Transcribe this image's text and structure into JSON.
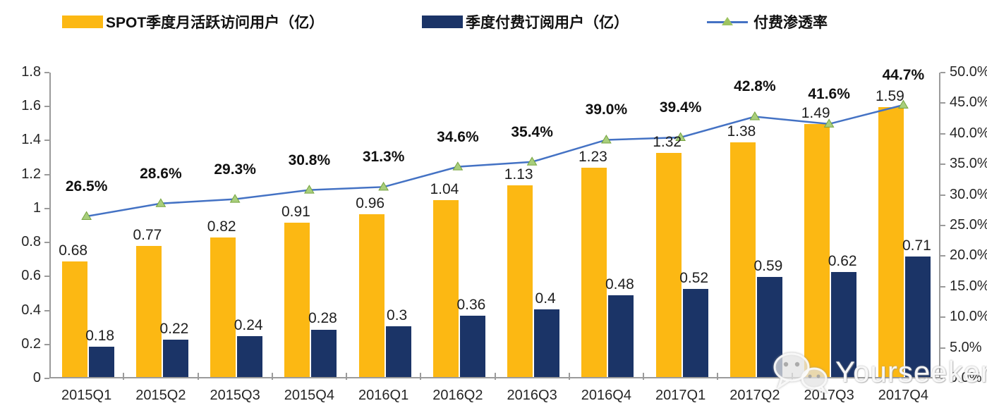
{
  "legend": [
    {
      "label": "SPOT季度月活跃访问用户（亿）",
      "type": "bar",
      "color": "#FCB813"
    },
    {
      "label": "季度付费订阅用户（亿）",
      "type": "bar",
      "color": "#1B3467"
    },
    {
      "label": "付费渗透率",
      "type": "line",
      "color": "#4472C4",
      "marker_color": "#9DC360"
    }
  ],
  "chart_data": {
    "type": "bar+line",
    "categories": [
      "2015Q1",
      "2015Q2",
      "2015Q3",
      "2015Q4",
      "2016Q1",
      "2016Q2",
      "2016Q3",
      "2016Q4",
      "2017Q1",
      "2017Q2",
      "2017Q3",
      "2017Q4"
    ],
    "series": [
      {
        "name": "SPOT季度月活跃访问用户（亿）",
        "type": "bar",
        "axis": "left",
        "color": "#FCB813",
        "values": [
          0.68,
          0.77,
          0.82,
          0.91,
          0.96,
          1.04,
          1.13,
          1.23,
          1.32,
          1.38,
          1.49,
          1.59
        ],
        "labels": [
          "0.68",
          "0.77",
          "0.82",
          "0.91",
          "0.96",
          "1.04",
          "1.13",
          "1.23",
          "1.32",
          "1.38",
          "1.49",
          "1.59"
        ]
      },
      {
        "name": "季度付费订阅用户（亿）",
        "type": "bar",
        "axis": "left",
        "color": "#1B3467",
        "values": [
          0.18,
          0.22,
          0.24,
          0.28,
          0.3,
          0.36,
          0.4,
          0.48,
          0.52,
          0.59,
          0.62,
          0.71
        ],
        "labels": [
          "0.18",
          "0.22",
          "0.24",
          "0.28",
          "0.3",
          "0.36",
          "0.4",
          "0.48",
          "0.52",
          "0.59",
          "0.62",
          "0.71"
        ]
      },
      {
        "name": "付费渗透率",
        "type": "line",
        "axis": "right",
        "color": "#4472C4",
        "marker": "triangle",
        "marker_fill": "#A8CE7C",
        "marker_stroke": "#76A43F",
        "values": [
          26.5,
          28.6,
          29.3,
          30.8,
          31.3,
          34.6,
          35.4,
          39.0,
          39.4,
          42.8,
          41.6,
          44.7
        ],
        "labels": [
          "26.5%",
          "28.6%",
          "29.3%",
          "30.8%",
          "31.3%",
          "34.6%",
          "35.4%",
          "39.0%",
          "39.4%",
          "42.8%",
          "41.6%",
          "44.7%"
        ]
      }
    ],
    "left_axis": {
      "min": 0,
      "max": 1.8,
      "step": 0.2,
      "ticks": [
        "1.8",
        "1.6",
        "1.4",
        "1.2",
        "1",
        "0.8",
        "0.6",
        "0.4",
        "0.2",
        "0"
      ]
    },
    "right_axis": {
      "min": 0,
      "max": 50,
      "step": 5,
      "ticks": [
        "50.0%",
        "45.0%",
        "40.0%",
        "35.0%",
        "30.0%",
        "25.0%",
        "20.0%",
        "15.0%",
        "10.0%",
        "5.0%",
        "0.0%"
      ]
    },
    "grid": false,
    "legend_position": "top"
  },
  "watermark": {
    "text": "Yourseeker",
    "icon": "wechat-icon"
  }
}
